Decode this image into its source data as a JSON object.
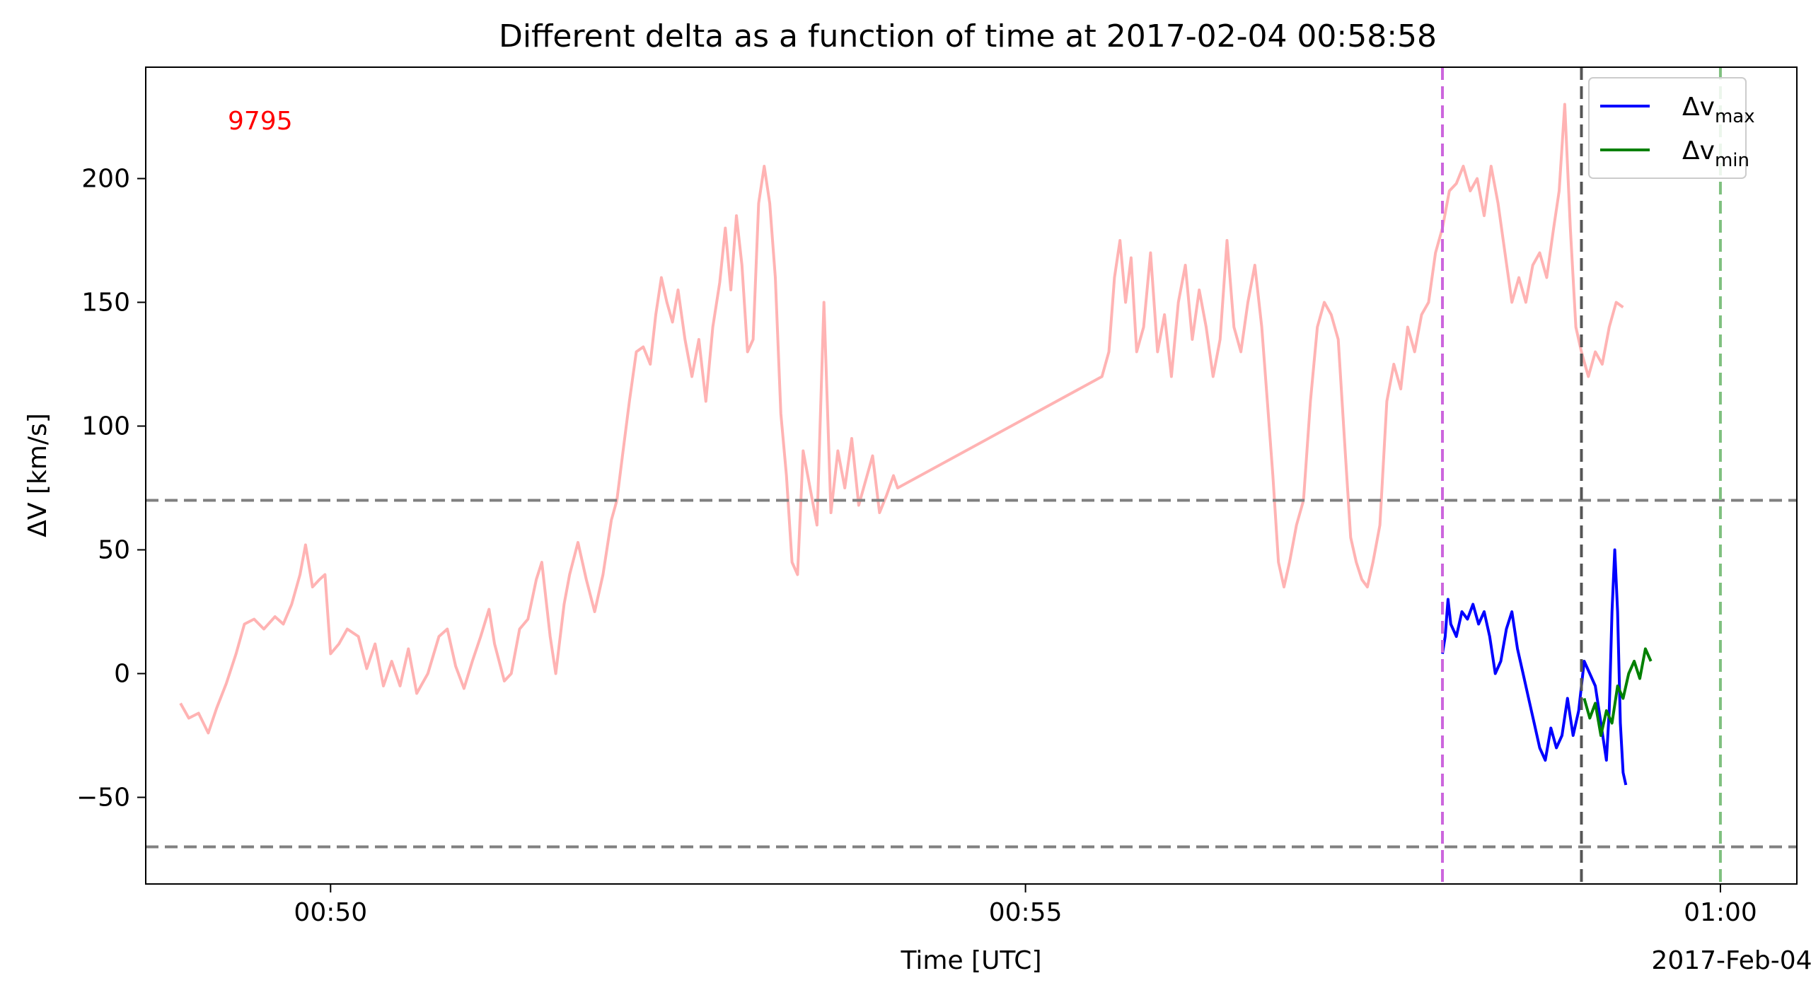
{
  "chart_data": {
    "type": "line",
    "title": "Different delta as a function of time at 2017-02-04 00:58:58",
    "xlabel": "Time [UTC]",
    "ylabel": "ΔV [km/s]",
    "x_date_label": "2017-Feb-04",
    "x_range": [
      "00:48:40",
      "01:00:30"
    ],
    "xlim_minutes": [
      48.67,
      60.55
    ],
    "ylim": [
      -85,
      245
    ],
    "x_ticks": [
      {
        "value": 50,
        "label": "00:50"
      },
      {
        "value": 55,
        "label": "00:55"
      },
      {
        "value": 60,
        "label": "01:00"
      }
    ],
    "y_ticks": [
      {
        "value": -50,
        "label": "−50"
      },
      {
        "value": 0,
        "label": "0"
      },
      {
        "value": 50,
        "label": "50"
      },
      {
        "value": 100,
        "label": "100"
      },
      {
        "value": 150,
        "label": "150"
      },
      {
        "value": 200,
        "label": "200"
      }
    ],
    "annotation": {
      "text": "9795",
      "color": "#ff0000"
    },
    "thresholds": [
      {
        "y": 70,
        "color": "#808080",
        "style": "dashed"
      },
      {
        "y": -70,
        "color": "#808080",
        "style": "dashed"
      }
    ],
    "vlines": [
      {
        "x": 58.0,
        "color": "#cc66dd",
        "style": "dashed"
      },
      {
        "x": 59.0,
        "color": "#555555",
        "style": "dashed"
      },
      {
        "x": 60.0,
        "color": "#7fc07f",
        "style": "dashed"
      }
    ],
    "legend": {
      "position": "top-right",
      "entries": [
        {
          "symbol": "Δv",
          "sub": "max",
          "color": "#0000ff"
        },
        {
          "symbol": "Δv",
          "sub": "min",
          "color": "#008000"
        }
      ]
    },
    "series": [
      {
        "color": "#ffb3b3",
        "points": [
          [
            48.92,
            -12
          ],
          [
            48.98,
            -18
          ],
          [
            49.05,
            -16
          ],
          [
            49.12,
            -24
          ],
          [
            49.18,
            -14
          ],
          [
            49.25,
            -4
          ],
          [
            49.32,
            8
          ],
          [
            49.38,
            20
          ],
          [
            49.45,
            22
          ],
          [
            49.52,
            18
          ],
          [
            49.6,
            23
          ],
          [
            49.66,
            20
          ],
          [
            49.72,
            28
          ],
          [
            49.78,
            40
          ],
          [
            49.82,
            52
          ],
          [
            49.87,
            35
          ],
          [
            49.92,
            38
          ],
          [
            49.96,
            40
          ],
          [
            50.0,
            8
          ],
          [
            50.06,
            12
          ],
          [
            50.12,
            18
          ],
          [
            50.2,
            15
          ],
          [
            50.26,
            2
          ],
          [
            50.32,
            12
          ],
          [
            50.38,
            -5
          ],
          [
            50.44,
            5
          ],
          [
            50.5,
            -5
          ],
          [
            50.56,
            10
          ],
          [
            50.62,
            -8
          ],
          [
            50.7,
            0
          ],
          [
            50.78,
            15
          ],
          [
            50.84,
            18
          ],
          [
            50.9,
            3
          ],
          [
            50.96,
            -6
          ],
          [
            51.02,
            5
          ],
          [
            51.08,
            15
          ],
          [
            51.14,
            26
          ],
          [
            51.18,
            12
          ],
          [
            51.25,
            -3
          ],
          [
            51.3,
            0
          ],
          [
            51.36,
            18
          ],
          [
            51.42,
            22
          ],
          [
            51.48,
            38
          ],
          [
            51.52,
            45
          ],
          [
            51.58,
            15
          ],
          [
            51.62,
            0
          ],
          [
            51.68,
            28
          ],
          [
            51.72,
            40
          ],
          [
            51.78,
            53
          ],
          [
            51.84,
            38
          ],
          [
            51.9,
            25
          ],
          [
            51.96,
            40
          ],
          [
            52.02,
            62
          ],
          [
            52.06,
            70
          ],
          [
            52.1,
            88
          ],
          [
            52.15,
            110
          ],
          [
            52.2,
            130
          ],
          [
            52.25,
            132
          ],
          [
            52.3,
            125
          ],
          [
            52.34,
            145
          ],
          [
            52.38,
            160
          ],
          [
            52.42,
            150
          ],
          [
            52.46,
            142
          ],
          [
            52.5,
            155
          ],
          [
            52.55,
            135
          ],
          [
            52.6,
            120
          ],
          [
            52.65,
            135
          ],
          [
            52.7,
            110
          ],
          [
            52.75,
            140
          ],
          [
            52.8,
            158
          ],
          [
            52.84,
            180
          ],
          [
            52.88,
            155
          ],
          [
            52.92,
            185
          ],
          [
            52.96,
            165
          ],
          [
            53.0,
            130
          ],
          [
            53.04,
            135
          ],
          [
            53.08,
            190
          ],
          [
            53.12,
            205
          ],
          [
            53.16,
            190
          ],
          [
            53.2,
            160
          ],
          [
            53.24,
            105
          ],
          [
            53.28,
            80
          ],
          [
            53.32,
            45
          ],
          [
            53.36,
            40
          ],
          [
            53.4,
            90
          ],
          [
            53.45,
            75
          ],
          [
            53.5,
            60
          ],
          [
            53.55,
            150
          ],
          [
            53.6,
            65
          ],
          [
            53.65,
            90
          ],
          [
            53.7,
            75
          ],
          [
            53.75,
            95
          ],
          [
            53.8,
            68
          ],
          [
            53.85,
            78
          ],
          [
            53.9,
            88
          ],
          [
            53.95,
            65
          ],
          [
            54.0,
            72
          ],
          [
            54.05,
            80
          ],
          [
            54.08,
            75
          ],
          [
            55.55,
            120
          ],
          [
            55.6,
            130
          ],
          [
            55.64,
            160
          ],
          [
            55.68,
            175
          ],
          [
            55.72,
            150
          ],
          [
            55.76,
            168
          ],
          [
            55.8,
            130
          ],
          [
            55.85,
            140
          ],
          [
            55.9,
            170
          ],
          [
            55.95,
            130
          ],
          [
            56.0,
            145
          ],
          [
            56.05,
            120
          ],
          [
            56.1,
            150
          ],
          [
            56.15,
            165
          ],
          [
            56.2,
            135
          ],
          [
            56.25,
            155
          ],
          [
            56.3,
            140
          ],
          [
            56.35,
            120
          ],
          [
            56.4,
            135
          ],
          [
            56.45,
            175
          ],
          [
            56.5,
            140
          ],
          [
            56.55,
            130
          ],
          [
            56.6,
            150
          ],
          [
            56.65,
            165
          ],
          [
            56.7,
            140
          ],
          [
            56.74,
            110
          ],
          [
            56.78,
            80
          ],
          [
            56.82,
            45
          ],
          [
            56.86,
            35
          ],
          [
            56.9,
            45
          ],
          [
            56.95,
            60
          ],
          [
            57.0,
            70
          ],
          [
            57.05,
            110
          ],
          [
            57.1,
            140
          ],
          [
            57.15,
            150
          ],
          [
            57.2,
            145
          ],
          [
            57.25,
            135
          ],
          [
            57.3,
            90
          ],
          [
            57.34,
            55
          ],
          [
            57.38,
            45
          ],
          [
            57.42,
            38
          ],
          [
            57.46,
            35
          ],
          [
            57.5,
            45
          ],
          [
            57.55,
            60
          ],
          [
            57.6,
            110
          ],
          [
            57.65,
            125
          ],
          [
            57.7,
            115
          ],
          [
            57.75,
            140
          ],
          [
            57.8,
            130
          ],
          [
            57.85,
            145
          ],
          [
            57.9,
            150
          ],
          [
            57.95,
            170
          ],
          [
            58.0,
            180
          ],
          [
            58.05,
            195
          ],
          [
            58.1,
            198
          ],
          [
            58.15,
            205
          ],
          [
            58.2,
            195
          ],
          [
            58.25,
            200
          ],
          [
            58.3,
            185
          ],
          [
            58.35,
            205
          ],
          [
            58.4,
            190
          ],
          [
            58.45,
            170
          ],
          [
            58.5,
            150
          ],
          [
            58.55,
            160
          ],
          [
            58.6,
            150
          ],
          [
            58.65,
            165
          ],
          [
            58.7,
            170
          ],
          [
            58.75,
            160
          ],
          [
            58.8,
            180
          ],
          [
            58.84,
            195
          ],
          [
            58.88,
            230
          ],
          [
            58.92,
            180
          ],
          [
            58.96,
            140
          ],
          [
            59.0,
            130
          ],
          [
            59.05,
            120
          ],
          [
            59.1,
            130
          ],
          [
            59.15,
            125
          ],
          [
            59.2,
            140
          ],
          [
            59.25,
            150
          ],
          [
            59.3,
            148
          ]
        ]
      },
      {
        "name": "Δvmax",
        "color": "#0000ff",
        "points": [
          [
            58.0,
            8
          ],
          [
            58.02,
            15
          ],
          [
            58.04,
            30
          ],
          [
            58.06,
            20
          ],
          [
            58.1,
            15
          ],
          [
            58.14,
            25
          ],
          [
            58.18,
            22
          ],
          [
            58.22,
            28
          ],
          [
            58.26,
            20
          ],
          [
            58.3,
            25
          ],
          [
            58.34,
            15
          ],
          [
            58.38,
            0
          ],
          [
            58.42,
            5
          ],
          [
            58.46,
            18
          ],
          [
            58.5,
            25
          ],
          [
            58.54,
            10
          ],
          [
            58.58,
            0
          ],
          [
            58.62,
            -10
          ],
          [
            58.66,
            -20
          ],
          [
            58.7,
            -30
          ],
          [
            58.74,
            -35
          ],
          [
            58.78,
            -22
          ],
          [
            58.82,
            -30
          ],
          [
            58.86,
            -25
          ],
          [
            58.9,
            -10
          ],
          [
            58.94,
            -25
          ],
          [
            58.98,
            -15
          ],
          [
            59.02,
            5
          ],
          [
            59.06,
            0
          ],
          [
            59.1,
            -5
          ],
          [
            59.14,
            -20
          ],
          [
            59.18,
            -35
          ],
          [
            59.2,
            -15
          ],
          [
            59.22,
            25
          ],
          [
            59.24,
            50
          ],
          [
            59.26,
            25
          ],
          [
            59.28,
            -20
          ],
          [
            59.3,
            -40
          ],
          [
            59.32,
            -45
          ]
        ]
      },
      {
        "name": "Δvmin",
        "color": "#008000",
        "points": [
          [
            59.02,
            -10
          ],
          [
            59.06,
            -18
          ],
          [
            59.1,
            -12
          ],
          [
            59.14,
            -25
          ],
          [
            59.18,
            -15
          ],
          [
            59.22,
            -20
          ],
          [
            59.26,
            -5
          ],
          [
            59.3,
            -10
          ],
          [
            59.34,
            0
          ],
          [
            59.38,
            5
          ],
          [
            59.42,
            -2
          ],
          [
            59.46,
            10
          ],
          [
            59.5,
            5
          ]
        ]
      }
    ]
  }
}
